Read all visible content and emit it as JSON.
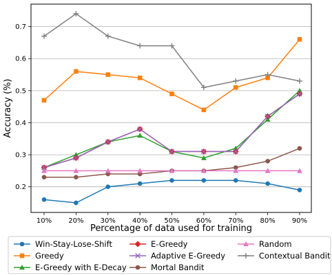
{
  "chart_data": {
    "type": "line",
    "xlabel": "Percentage of data used for training",
    "ylabel": "Accuracy (%)",
    "categories": [
      "10%",
      "20%",
      "30%",
      "40%",
      "50%",
      "60%",
      "70%",
      "80%",
      "90%"
    ],
    "ylim": [
      0.12,
      0.77
    ],
    "yticks": [
      0.2,
      0.3,
      0.4,
      0.5,
      0.6,
      0.7
    ],
    "ytick_labels": [
      "0.2",
      "0.3",
      "0.4",
      "0.5",
      "0.6",
      "0.7"
    ],
    "grid": "horizontal",
    "legend_placement": "below plot, 3 columns",
    "series": [
      {
        "name": "Win-Stay-Lose-Shift",
        "color": "#1f77b4",
        "marker": "circle",
        "values": [
          0.16,
          0.15,
          0.2,
          0.21,
          0.22,
          0.22,
          0.22,
          0.21,
          0.19
        ]
      },
      {
        "name": "Greedy",
        "color": "#ff7f0e",
        "marker": "square",
        "values": [
          0.47,
          0.56,
          0.55,
          0.54,
          0.49,
          0.44,
          0.51,
          0.54,
          0.66
        ]
      },
      {
        "name": "E-Greedy with E-Decay",
        "color": "#2ca02c",
        "marker": "triangle",
        "values": [
          0.26,
          0.3,
          0.34,
          0.36,
          0.31,
          0.29,
          0.32,
          0.41,
          0.5
        ]
      },
      {
        "name": "E-Greedy",
        "color": "#d62728",
        "marker": "diamond",
        "values": [
          0.26,
          0.29,
          0.34,
          0.38,
          0.31,
          0.31,
          0.31,
          0.42,
          0.49
        ]
      },
      {
        "name": "Adaptive E-Greedy",
        "color": "#9467bd",
        "marker": "x",
        "values": [
          0.26,
          0.29,
          0.34,
          0.38,
          0.31,
          0.31,
          0.31,
          0.42,
          0.49
        ]
      },
      {
        "name": "Mortal Bandit",
        "color": "#8c564b",
        "marker": "circle",
        "values": [
          0.23,
          0.23,
          0.24,
          0.24,
          0.25,
          0.25,
          0.26,
          0.28,
          0.32
        ]
      },
      {
        "name": "Random",
        "color": "#e377c2",
        "marker": "triangle",
        "values": [
          0.25,
          0.25,
          0.25,
          0.25,
          0.25,
          0.25,
          0.25,
          0.25,
          0.25
        ]
      },
      {
        "name": "Contextual Bandit",
        "color": "#7f7f7f",
        "marker": "plus",
        "values": [
          0.67,
          0.74,
          0.67,
          0.64,
          0.64,
          0.51,
          0.53,
          0.55,
          0.53
        ]
      }
    ]
  }
}
